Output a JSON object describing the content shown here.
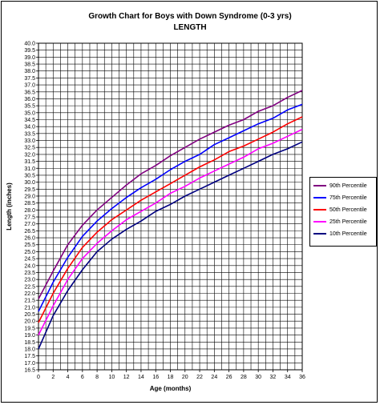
{
  "chart_data": {
    "type": "line",
    "title": "Growth Chart for Boys with Down Syndrome (0-3 yrs)",
    "subtitle": "LENGTH",
    "xlabel": "Age (months)",
    "ylabel": "Length (inches)",
    "xlim": [
      0,
      36
    ],
    "ylim": [
      16.5,
      40.0
    ],
    "x_ticks": [
      0,
      2,
      4,
      6,
      8,
      10,
      12,
      14,
      16,
      18,
      20,
      22,
      24,
      26,
      28,
      30,
      32,
      34,
      36
    ],
    "y_ticks": [
      "16.5",
      "17.0",
      "17.5",
      "18.0",
      "18.5",
      "19.0",
      "19.5",
      "20.0",
      "20.5",
      "21.0",
      "21.5",
      "22.0",
      "22.5",
      "23.0",
      "23.5",
      "24.0",
      "24.5",
      "25.0",
      "25.5",
      "26.0",
      "26.5",
      "27.0",
      "27.5",
      "28.0",
      "28.5",
      "29.0",
      "29.5",
      "30.0",
      "30.5",
      "31.0",
      "31.5",
      "32.0",
      "32.5",
      "33.0",
      "33.5",
      "34.0",
      "34.5",
      "35.0",
      "35.5",
      "36.0",
      "36.5",
      "37.0",
      "37.5",
      "38.0",
      "38.5",
      "39.0",
      "39.5",
      "40.0"
    ],
    "grid": true,
    "legend_position": "right",
    "x": [
      0,
      2,
      4,
      6,
      8,
      10,
      12,
      14,
      16,
      18,
      20,
      22,
      24,
      26,
      28,
      30,
      32,
      34,
      36
    ],
    "series": [
      {
        "name": "90th Percentile",
        "color": "#800080",
        "values": [
          21.6,
          23.6,
          25.5,
          26.9,
          28.0,
          28.9,
          29.8,
          30.6,
          31.2,
          31.9,
          32.5,
          33.1,
          33.6,
          34.1,
          34.5,
          35.1,
          35.5,
          36.1,
          36.6
        ]
      },
      {
        "name": "75th Percentile",
        "color": "#0000ff",
        "values": [
          20.7,
          22.8,
          24.6,
          26.1,
          27.2,
          28.1,
          28.9,
          29.6,
          30.2,
          30.9,
          31.5,
          32.0,
          32.7,
          33.2,
          33.7,
          34.2,
          34.6,
          35.2,
          35.6
        ]
      },
      {
        "name": "50th Percentile",
        "color": "#ff0000",
        "values": [
          19.9,
          22.0,
          23.8,
          25.3,
          26.4,
          27.3,
          28.0,
          28.7,
          29.3,
          29.9,
          30.5,
          31.1,
          31.6,
          32.2,
          32.6,
          33.1,
          33.6,
          34.2,
          34.7
        ]
      },
      {
        "name": "25th Percentile",
        "color": "#ff00ff",
        "values": [
          19.0,
          21.1,
          23.0,
          24.5,
          25.6,
          26.5,
          27.3,
          27.9,
          28.5,
          29.2,
          29.7,
          30.3,
          30.8,
          31.3,
          31.8,
          32.4,
          32.8,
          33.3,
          33.8
        ]
      },
      {
        "name": "10th Percentile",
        "color": "#000080",
        "values": [
          18.0,
          20.4,
          22.2,
          23.7,
          25.0,
          25.9,
          26.6,
          27.2,
          27.9,
          28.4,
          29.0,
          29.5,
          30.0,
          30.5,
          31.0,
          31.5,
          32.0,
          32.4,
          32.9
        ]
      }
    ]
  }
}
